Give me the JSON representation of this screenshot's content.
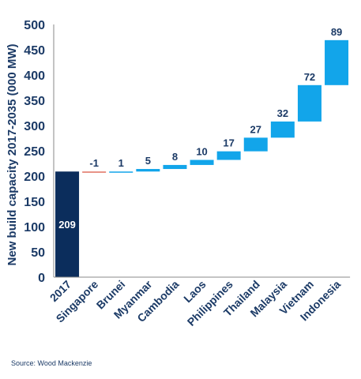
{
  "chart_data": {
    "type": "bar",
    "subtype": "waterfall",
    "ylabel": "New build capacity 2017-2035 (000 MW)",
    "ylim": [
      0,
      500
    ],
    "yticks": [
      0,
      50,
      100,
      150,
      200,
      250,
      300,
      350,
      400,
      450,
      500
    ],
    "grid": false,
    "categories": [
      "2017",
      "Singapore",
      "Brunei",
      "Myanmar",
      "Cambodia",
      "Laos",
      "Philippines",
      "Thailand",
      "Malaysia",
      "Vietnam",
      "Indonesia"
    ],
    "values": [
      209,
      -1,
      1,
      5,
      8,
      10,
      17,
      27,
      32,
      72,
      89
    ],
    "labels": [
      "209",
      "-1",
      "1",
      "5",
      "8",
      "10",
      "17",
      "27",
      "32",
      "72",
      "89"
    ],
    "colors": {
      "base": "#0b2d5c",
      "increase": "#12a5ea",
      "decrease": "#e07060",
      "axis_text": "#1b3a66",
      "base_label": "#ffffff"
    }
  },
  "source": "Source: Wood Mackenzie"
}
